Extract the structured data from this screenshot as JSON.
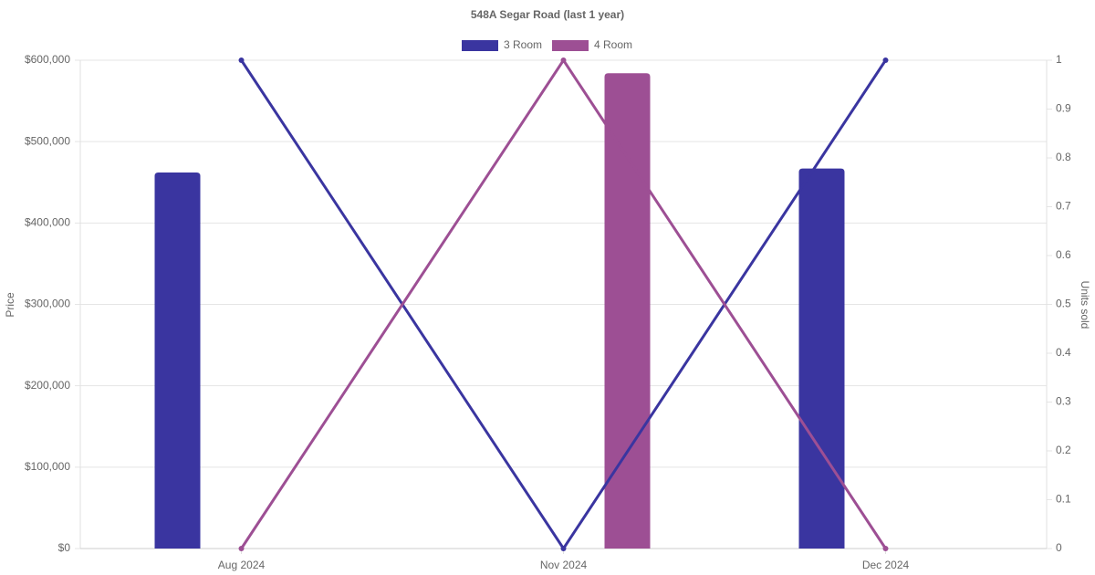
{
  "chart_data": {
    "type": "bar-line",
    "title": "548A Segar Road (last 1 year)",
    "y_label": "Price",
    "y2_label": "Units sold",
    "categories": [
      "Aug 2024",
      "Nov 2024",
      "Dec 2024"
    ],
    "series": [
      {
        "name": "3 Room",
        "color": "#3a35a0",
        "values": [
          462000,
          null,
          467000
        ],
        "y2_values": [
          1,
          0,
          1
        ]
      },
      {
        "name": "4 Room",
        "color": "#9d4f94",
        "values": [
          null,
          584000,
          null
        ],
        "y2_values": [
          0,
          1,
          0
        ]
      }
    ],
    "ylim": [
      0,
      600000
    ],
    "yticks": [
      {
        "value": 0,
        "label": "$0"
      },
      {
        "value": 100000,
        "label": "$100,000"
      },
      {
        "value": 200000,
        "label": "$200,000"
      },
      {
        "value": 300000,
        "label": "$300,000"
      },
      {
        "value": 400000,
        "label": "$400,000"
      },
      {
        "value": 500000,
        "label": "$500,000"
      },
      {
        "value": 600000,
        "label": "$600,000"
      }
    ],
    "y2lim": [
      0,
      1
    ],
    "y2ticks": [
      0,
      0.1,
      0.2,
      0.3,
      0.4,
      0.5,
      0.6,
      0.7,
      0.8,
      0.9,
      1
    ],
    "grid": true,
    "legend": "top"
  }
}
